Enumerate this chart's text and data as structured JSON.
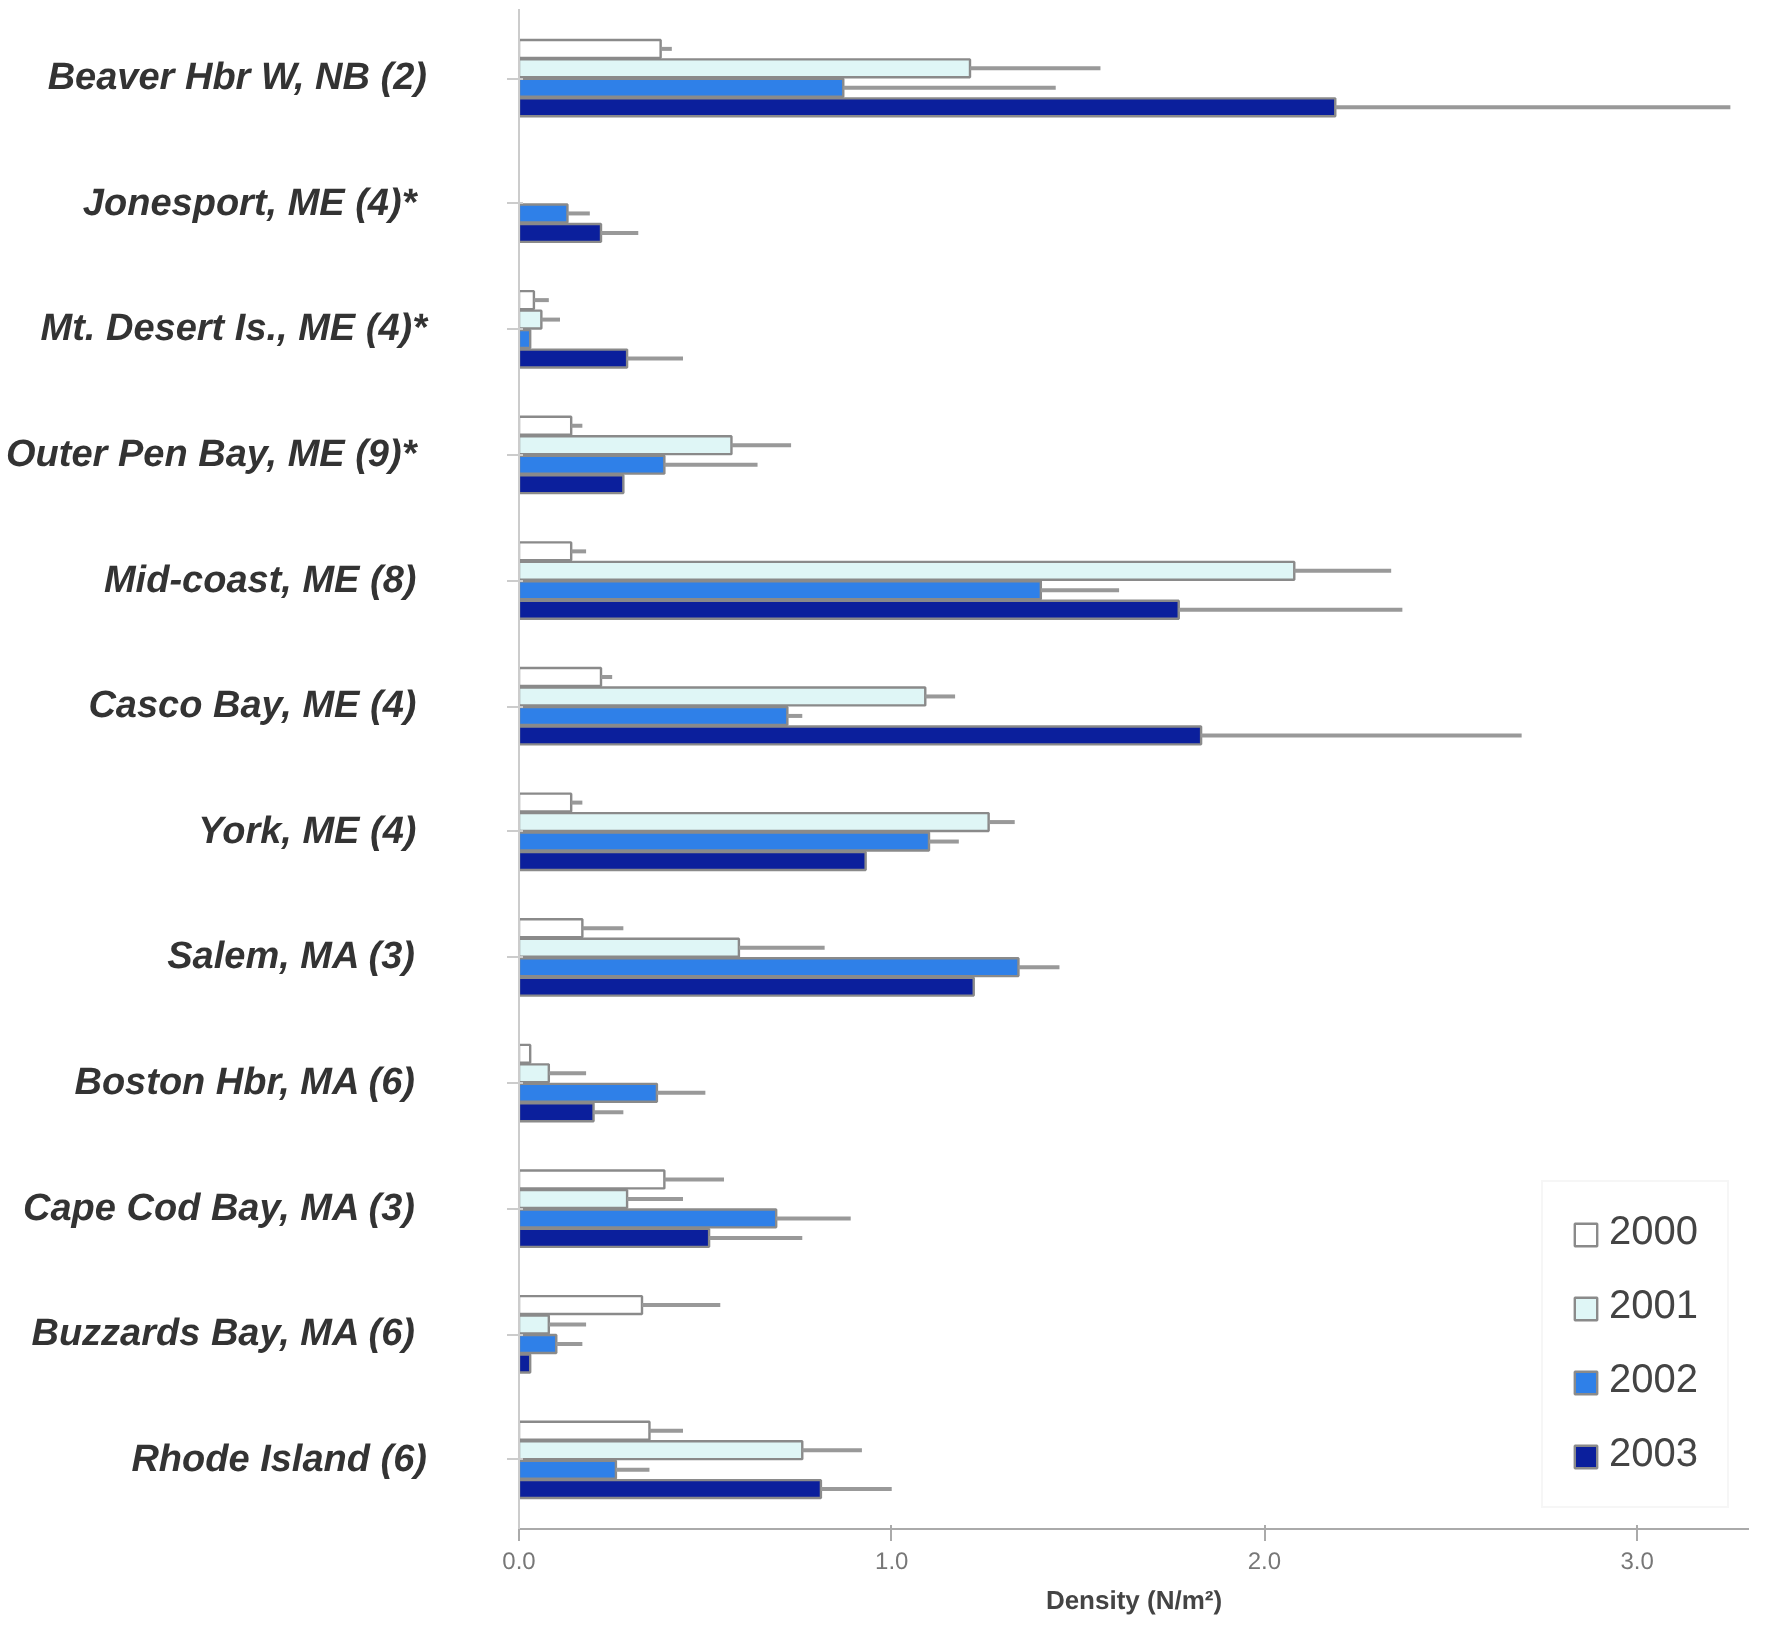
{
  "chart_data": {
    "type": "bar",
    "orientation": "horizontal",
    "xlabel": "Density (N/m²)",
    "categories": [
      "Beaver Hbr W, NB (2)",
      "Jonesport, ME  (4)*",
      "Mt. Desert Is., ME (4)*",
      "Outer Pen Bay, ME  (9)*",
      "Mid-coast, ME  (8)",
      "Casco Bay, ME  (4)",
      "York, ME  (4)",
      "Salem, MA  (3)",
      "Boston Hbr, MA  (6)",
      "Cape Cod Bay, MA  (3)",
      "Buzzards Bay, MA  (6)",
      "Rhode Island (6)"
    ],
    "series": [
      {
        "name": "2000",
        "color": "#ffffff",
        "values": [
          0.38,
          null,
          0.04,
          0.14,
          0.14,
          0.22,
          0.14,
          0.17,
          0.03,
          0.39,
          0.33,
          0.35
        ],
        "errors": [
          [
            0.38,
            0.41
          ],
          null,
          [
            0.04,
            0.08
          ],
          [
            0.14,
            0.17
          ],
          [
            0.14,
            0.18
          ],
          [
            0.22,
            0.25
          ],
          [
            0.14,
            0.17
          ],
          [
            0.17,
            0.28
          ],
          null,
          [
            0.39,
            0.55
          ],
          [
            0.33,
            0.54
          ],
          [
            0.35,
            0.44
          ]
        ]
      },
      {
        "name": "2001",
        "color": "#dff6f6",
        "values": [
          1.21,
          null,
          0.06,
          0.57,
          2.08,
          1.09,
          1.26,
          0.59,
          0.08,
          0.29,
          0.08,
          0.76
        ],
        "errors": [
          [
            1.21,
            1.56
          ],
          null,
          [
            0.06,
            0.11
          ],
          [
            0.57,
            0.73
          ],
          [
            2.08,
            2.34
          ],
          [
            1.09,
            1.17
          ],
          [
            1.26,
            1.33
          ],
          [
            0.59,
            0.82
          ],
          [
            0.08,
            0.18
          ],
          [
            0.29,
            0.44
          ],
          [
            0.08,
            0.18
          ],
          [
            0.76,
            0.92
          ]
        ]
      },
      {
        "name": "2002",
        "color": "#2f80e8",
        "values": [
          0.87,
          0.13,
          0.03,
          0.39,
          1.4,
          0.72,
          1.1,
          1.34,
          0.37,
          0.69,
          0.1,
          0.26
        ],
        "errors": [
          [
            0.87,
            1.44
          ],
          [
            0.13,
            0.19
          ],
          null,
          [
            0.39,
            0.64
          ],
          [
            1.4,
            1.61
          ],
          [
            0.72,
            0.76
          ],
          [
            1.1,
            1.18
          ],
          [
            1.34,
            1.45
          ],
          [
            0.37,
            0.5
          ],
          [
            0.69,
            0.89
          ],
          [
            0.1,
            0.17
          ],
          [
            0.26,
            0.35
          ]
        ]
      },
      {
        "name": "2003",
        "color": "#0b1f9c",
        "values": [
          2.19,
          0.22,
          0.29,
          0.28,
          1.77,
          1.83,
          0.93,
          1.22,
          0.2,
          0.51,
          0.03,
          0.81
        ],
        "errors": [
          [
            2.19,
            3.25
          ],
          [
            0.22,
            0.32
          ],
          [
            0.29,
            0.44
          ],
          null,
          [
            1.77,
            2.37
          ],
          [
            1.83,
            2.69
          ],
          null,
          null,
          [
            0.2,
            0.28
          ],
          [
            0.51,
            0.76
          ],
          null,
          [
            0.81,
            1.0
          ]
        ]
      }
    ],
    "xlim": [
      0,
      3.3
    ],
    "xticks": [
      {
        "value": 0,
        "label": "0.0"
      },
      {
        "value": 1,
        "label": "1.0"
      },
      {
        "value": 2,
        "label": "2.0"
      },
      {
        "value": 3,
        "label": "3.0"
      }
    ],
    "legend": "bottom right",
    "grid": false
  }
}
